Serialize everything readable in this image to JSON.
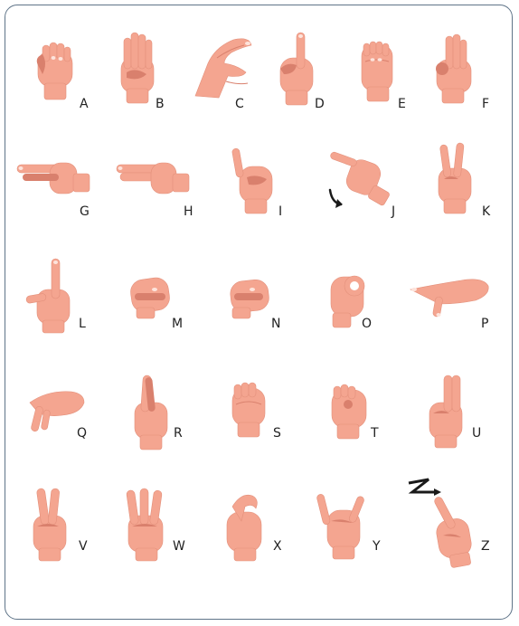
{
  "letters": [
    "A",
    "B",
    "C",
    "D",
    "E",
    "F",
    "G",
    "H",
    "I",
    "J",
    "K",
    "L",
    "M",
    "N",
    "O",
    "P",
    "Q",
    "R",
    "S",
    "T",
    "U",
    "V",
    "W",
    "X",
    "Y",
    "Z"
  ],
  "colors": {
    "skin": "#f4a590",
    "skin_light": "#f9c2b1",
    "skin_dark": "#d9806d",
    "nail": "#fde4dc",
    "frame": "#5f7488",
    "arrow": "#1a1a1a"
  },
  "icons": {
    "motion_j": "curved-arrow-icon",
    "motion_z": "zigzag-arrow-icon"
  }
}
